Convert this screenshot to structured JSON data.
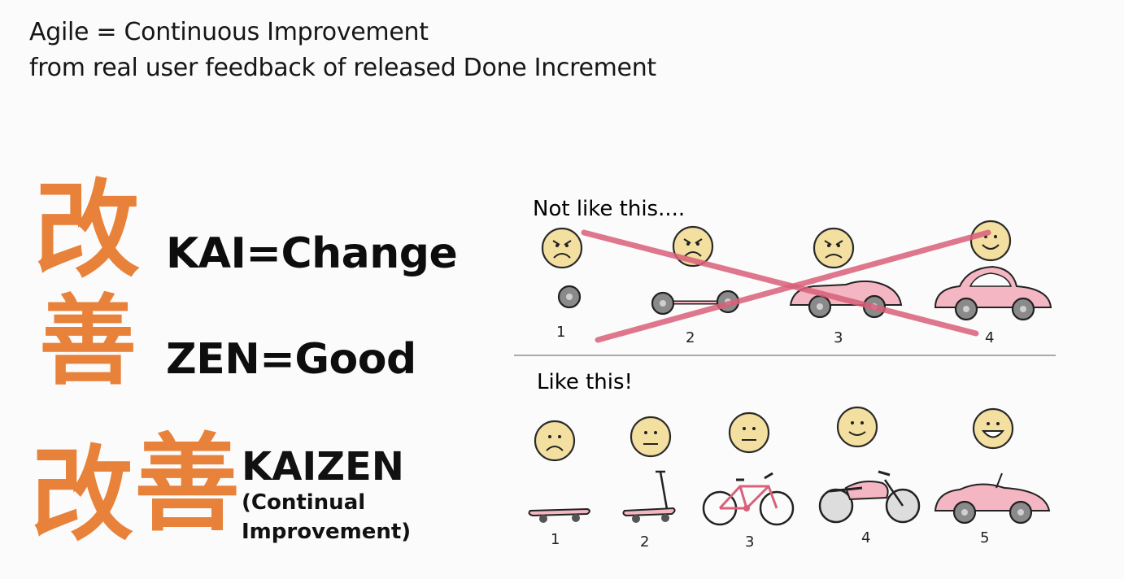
{
  "header": {
    "line1": "Agile = Continuous Improvement",
    "line2": "from real user feedback of released Done Increment"
  },
  "left": {
    "kai_char": "改",
    "zen_char": "善",
    "kai_label": "KAI=Change",
    "zen_label": "ZEN=Good",
    "kaizen_label": "KAIZEN",
    "kaizen_sub1": "(Continual",
    "kaizen_sub2": "Improvement)",
    "kanji_color": "#e8823a"
  },
  "diagram": {
    "not_like_this": "Not like this....",
    "like_this": "Like this!",
    "top_numbers": [
      "1",
      "2",
      "3",
      "4"
    ],
    "bottom_numbers": [
      "1",
      "2",
      "3",
      "4",
      "5"
    ],
    "top_stages": [
      "wheel",
      "wheels-with-axle",
      "car-body",
      "car"
    ],
    "bottom_stages": [
      "skateboard",
      "scooter",
      "bicycle",
      "motorcycle",
      "car"
    ],
    "cross_color": "#d9607a",
    "face_color": "#f3dfa0",
    "vehicle_color": "#f3b6c2"
  }
}
